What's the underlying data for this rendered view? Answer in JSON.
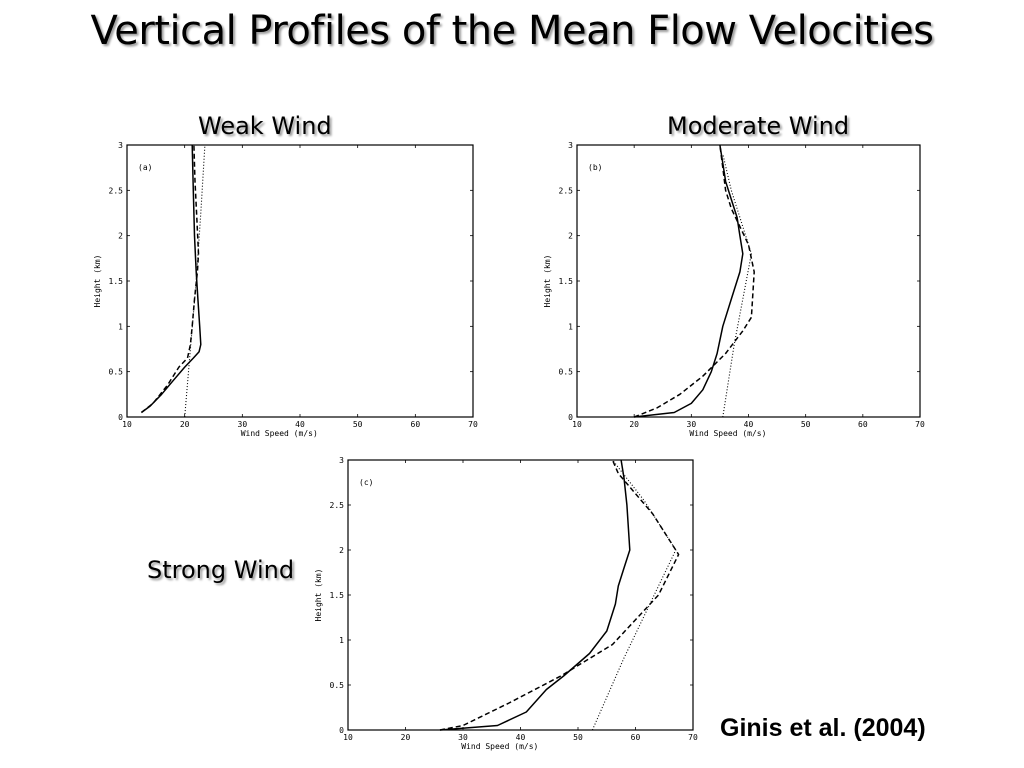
{
  "slide": {
    "title": "Vertical Profiles of the Mean Flow Velocities",
    "citation": "Ginis et al. (2004)"
  },
  "captions": {
    "weak": "Weak Wind",
    "moderate": "Moderate Wind",
    "strong": "Strong Wind"
  },
  "chart_data": [
    {
      "type": "line",
      "panel_label": "(a)",
      "xlabel": "Wind Speed (m/s)",
      "ylabel": "Height (km)",
      "xlim": [
        10,
        70
      ],
      "ylim": [
        0,
        3
      ],
      "xticks": [
        10,
        20,
        30,
        40,
        50,
        60,
        70
      ],
      "yticks": [
        0,
        0.5,
        1,
        1.5,
        2,
        2.5,
        3
      ],
      "grid": false,
      "series": [
        {
          "style": "solid",
          "x": [
            12.5,
            14,
            16,
            18,
            20,
            21.5,
            22.5,
            22.8,
            22.6,
            22.3,
            22,
            21.7,
            21.5,
            21.3
          ],
          "y": [
            0.05,
            0.12,
            0.25,
            0.4,
            0.55,
            0.65,
            0.72,
            0.8,
            1.0,
            1.3,
            1.6,
            2.0,
            2.5,
            3.0
          ]
        },
        {
          "style": "dashed",
          "x": [
            12.5,
            14.5,
            17,
            19,
            20.5,
            21,
            21.3,
            21.7,
            22.2,
            22.4,
            22.1,
            21.8,
            21.6
          ],
          "y": [
            0.05,
            0.15,
            0.35,
            0.55,
            0.65,
            0.8,
            1.0,
            1.3,
            1.6,
            1.8,
            2.2,
            2.6,
            3.0
          ]
        },
        {
          "style": "dotted",
          "x": [
            20.0,
            21.0,
            22.0,
            22.8,
            23.5
          ],
          "y": [
            0.0,
            0.75,
            1.5,
            2.25,
            3.0
          ]
        }
      ]
    },
    {
      "type": "line",
      "panel_label": "(b)",
      "xlabel": "Wind Speed (m/s)",
      "ylabel": "Height (km)",
      "xlim": [
        10,
        70
      ],
      "ylim": [
        0,
        3
      ],
      "xticks": [
        10,
        20,
        30,
        40,
        50,
        60,
        70
      ],
      "yticks": [
        0,
        0.5,
        1,
        1.5,
        2,
        2.5,
        3
      ],
      "grid": false,
      "series": [
        {
          "style": "solid",
          "x": [
            20,
            27,
            30,
            32,
            33.5,
            34.5,
            35.5,
            37,
            38.5,
            39,
            38.5,
            38,
            37,
            36,
            35.5,
            35
          ],
          "y": [
            0.0,
            0.05,
            0.15,
            0.3,
            0.5,
            0.7,
            1.0,
            1.3,
            1.6,
            1.8,
            2.0,
            2.2,
            2.4,
            2.6,
            2.8,
            3.0
          ]
        },
        {
          "style": "dashed",
          "x": [
            20,
            24,
            28,
            32,
            36,
            39,
            40.5,
            41,
            40,
            38.5,
            37,
            36,
            35.5,
            35
          ],
          "y": [
            0.0,
            0.1,
            0.25,
            0.45,
            0.7,
            0.95,
            1.1,
            1.6,
            1.9,
            2.1,
            2.3,
            2.5,
            2.75,
            3.0
          ]
        },
        {
          "style": "dotted",
          "x": [
            35.5,
            37.5,
            40.5,
            37,
            35.5
          ],
          "y": [
            0.0,
            0.8,
            1.8,
            2.5,
            2.9
          ]
        }
      ]
    },
    {
      "type": "line",
      "panel_label": "(c)",
      "xlabel": "Wind Speed (m/s)",
      "ylabel": "Height (km)",
      "xlim": [
        10,
        70
      ],
      "ylim": [
        0,
        3
      ],
      "xticks": [
        10,
        20,
        30,
        40,
        50,
        60,
        70
      ],
      "yticks": [
        0,
        0.5,
        1,
        1.5,
        2,
        2.5,
        3
      ],
      "grid": false,
      "series": [
        {
          "style": "solid",
          "x": [
            26,
            36,
            41,
            44.5,
            47.5,
            52,
            55,
            56.5,
            57,
            58,
            59,
            58.5,
            58,
            57.5
          ],
          "y": [
            0.0,
            0.05,
            0.2,
            0.45,
            0.6,
            0.85,
            1.1,
            1.4,
            1.6,
            1.8,
            2.0,
            2.5,
            2.8,
            3.0
          ]
        },
        {
          "style": "dashed",
          "x": [
            26,
            30,
            38,
            47,
            56,
            64,
            67.5,
            66,
            63,
            59,
            57,
            56
          ],
          "y": [
            0.0,
            0.05,
            0.3,
            0.6,
            0.95,
            1.5,
            1.95,
            2.1,
            2.4,
            2.7,
            2.85,
            3.0
          ]
        },
        {
          "style": "dotted",
          "x": [
            52.5,
            58,
            64,
            67,
            61.5,
            56
          ],
          "y": [
            0.0,
            0.8,
            1.6,
            2.0,
            2.55,
            3.0
          ]
        }
      ]
    }
  ]
}
